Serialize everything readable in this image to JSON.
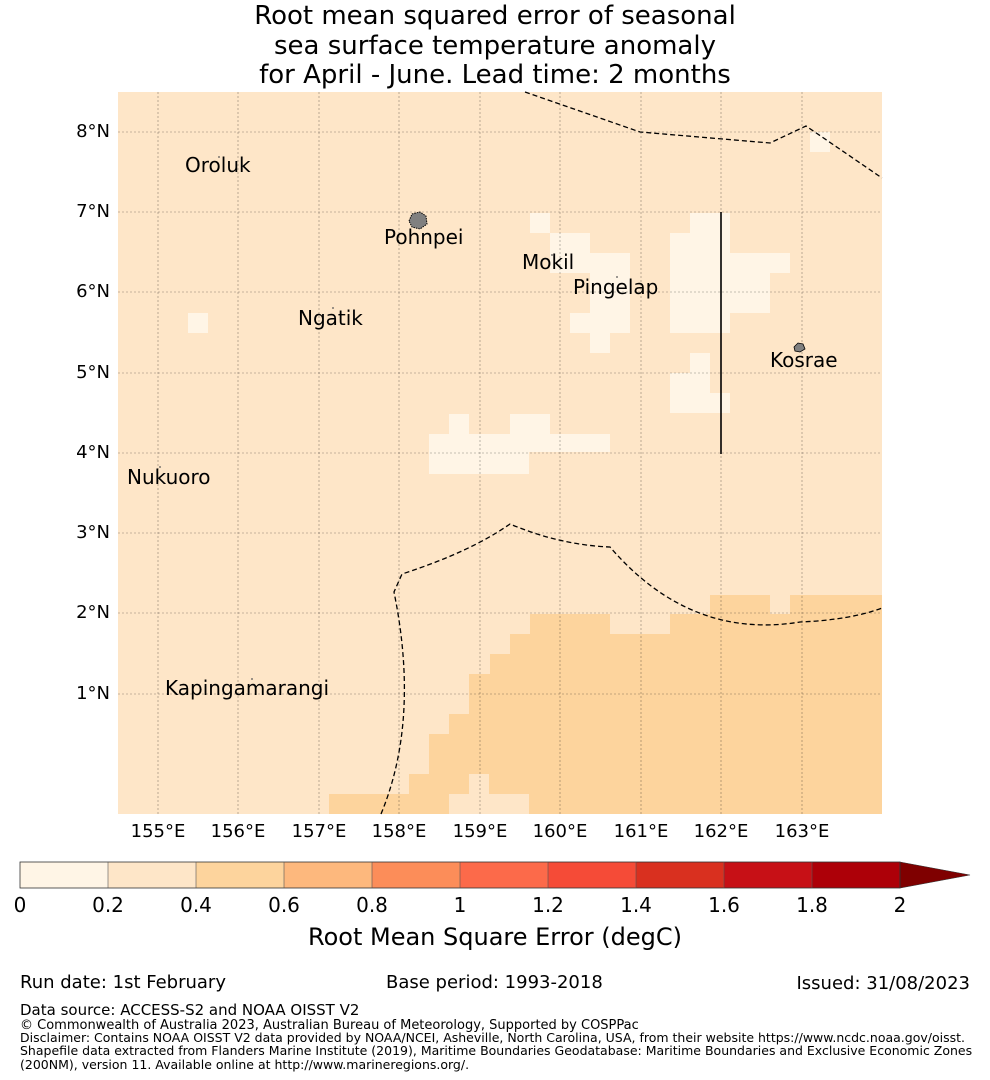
{
  "title_lines": [
    "Root mean squared error of seasonal",
    "sea surface temperature anomaly",
    "for April - June. Lead time: 2 months"
  ],
  "map": {
    "lat_labels": [
      "8°N",
      "7°N",
      "6°N",
      "5°N",
      "4°N",
      "3°N",
      "2°N",
      "1°N"
    ],
    "lon_labels": [
      "155°E",
      "156°E",
      "157°E",
      "158°E",
      "159°E",
      "160°E",
      "161°E",
      "162°E",
      "163°E"
    ],
    "islands": [
      {
        "name": "Oroluk"
      },
      {
        "name": "Pohnpei"
      },
      {
        "name": "Mokil"
      },
      {
        "name": "Pingelap"
      },
      {
        "name": "Ngatik"
      },
      {
        "name": "Kosrae"
      },
      {
        "name": "Nukuoro"
      },
      {
        "name": "Kapingamarangi"
      }
    ],
    "field_colors": {
      "lt02": "#fff5e6",
      "r02_04": "#fee6c8",
      "r04_06": "#fdd49d"
    }
  },
  "colorbar": {
    "colors": [
      "#fff5e6",
      "#fee6c8",
      "#fdd49d",
      "#fdb87d",
      "#fc8d59",
      "#fc6a4a",
      "#f54b37",
      "#d9301f",
      "#c71016",
      "#ad0008",
      "#7f0000"
    ],
    "tick_labels": [
      "0",
      "0.2",
      "0.4",
      "0.6",
      "0.8",
      "1",
      "1.2",
      "1.4",
      "1.6",
      "1.8",
      "2"
    ],
    "title": "Root Mean Square Error (degC)"
  },
  "footer": {
    "run_date": "Run date: 1st February",
    "base_period": "Base period: 1993-2018",
    "issued": "Issued: 31/08/2023",
    "data_source": "Data source: ACCESS-S2 and NOAA OISST V2",
    "copyright": "© Commonwealth of Australia 2023, Australian Bureau of Meteorology, Supported by COSPPac",
    "disclaimer_lines": [
      "Disclaimer: Contains NOAA OISST V2 data provided by NOAA/NCEI, Asheville, North Carolina, USA, from their website https://www.ncdc.noaa.gov/oisst.",
      "Shapefile data extracted from Flanders Marine Institute (2019), Maritime Boundaries Geodatabase: Maritime Boundaries and Exclusive Economic Zones",
      "(200NM), version 11. Available online at http://www.marineregions.org/."
    ]
  }
}
